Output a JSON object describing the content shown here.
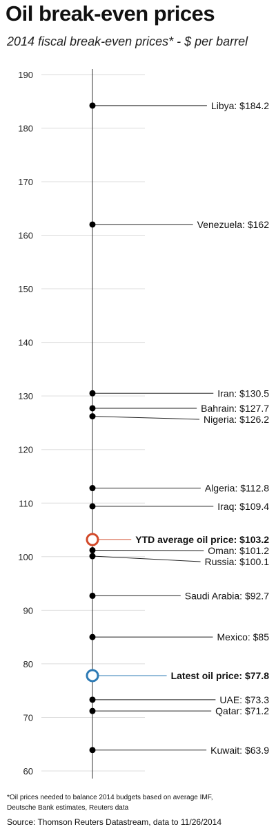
{
  "title": "Oil break-even prices",
  "subtitle": "2014 fiscal break-even prices* - $ per barrel",
  "footnote": "*Oil prices needed to balance 2014 budgets based on average IMF, Deutsche Bank estimates, Reuters data",
  "source": "Source: Thomson Reuters Datastream, data to 11/26/2014",
  "chart_data": {
    "type": "scatter",
    "title": "Oil break-even prices",
    "ylabel": "",
    "ylim": [
      58,
      193
    ],
    "yticks": [
      60,
      70,
      80,
      90,
      100,
      110,
      120,
      130,
      140,
      150,
      160,
      170,
      180,
      190
    ],
    "grid": true,
    "points": [
      {
        "label": "Libya: $184.2",
        "value": 184.2
      },
      {
        "label": "Venezuela: $162",
        "value": 162
      },
      {
        "label": "Iran: $130.5",
        "value": 130.5
      },
      {
        "label": "Bahrain: $127.7",
        "value": 127.7
      },
      {
        "label": "Nigeria: $126.2",
        "value": 126.2
      },
      {
        "label": "Algeria: $112.8",
        "value": 112.8
      },
      {
        "label": "Iraq: $109.4",
        "value": 109.4
      },
      {
        "label": "Oman: $101.2",
        "value": 101.2
      },
      {
        "label": "Russia: $100.1",
        "value": 100.1
      },
      {
        "label": "Saudi Arabia: $92.7",
        "value": 92.7
      },
      {
        "label": "Mexico: $85",
        "value": 85
      },
      {
        "label": "UAE: $73.3",
        "value": 73.3
      },
      {
        "label": "Qatar: $71.2",
        "value": 71.2
      },
      {
        "label": "Kuwait: $63.9",
        "value": 63.9
      }
    ],
    "reference_points": [
      {
        "label": "YTD average oil price: $103.2",
        "value": 103.2,
        "color": "#d2492a"
      },
      {
        "label": "Latest oil price: $77.8",
        "value": 77.8,
        "color": "#2e7bb5"
      }
    ]
  }
}
